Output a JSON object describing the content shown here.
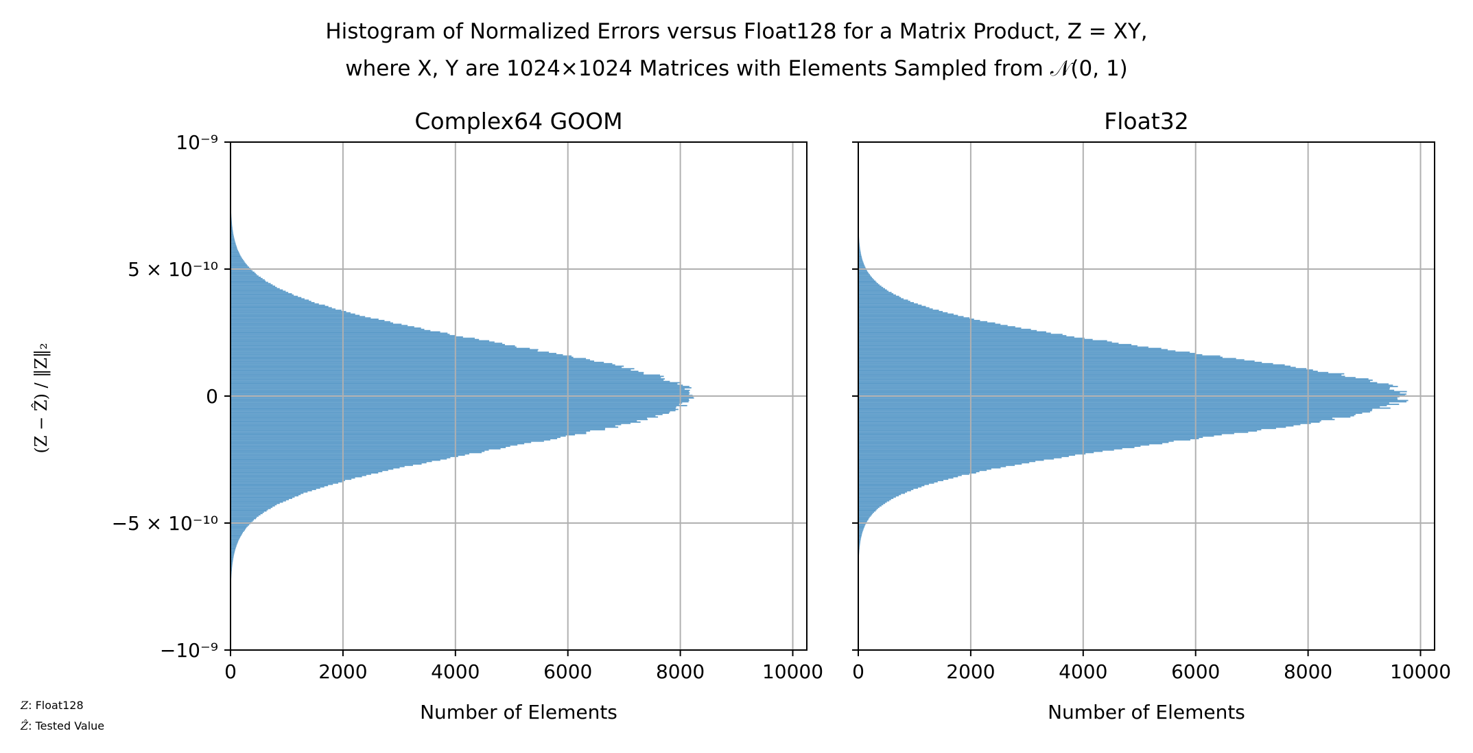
{
  "figure": {
    "title_line1": "Histogram of Normalized Errors versus Float128 for a Matrix Product, Z = XY,",
    "title_line2": "where X, Y are 1024×1024 Matrices with Elements Sampled from 𝒩(0, 1)",
    "ylabel": "(Z − Ẑ) / ‖Z‖₂",
    "note_z_symbol": "Z",
    "note_z": ":  Float128",
    "note_zhat_symbol": "Ẑ",
    "note_zhat": ":  Tested Value"
  },
  "colors": {
    "bar": "#5f9dca",
    "grid": "#b0b0b0",
    "axis": "#000000"
  },
  "chart_data": [
    {
      "type": "bar",
      "orientation": "horizontal",
      "title": "Complex64 GOOM",
      "xlabel": "Number of Elements",
      "ylabel": "(Z − Ẑ) / ‖Z‖₂",
      "xlim": [
        0,
        10250
      ],
      "ylim": [
        -1e-09,
        1e-09
      ],
      "xticks": [
        0,
        2000,
        4000,
        6000,
        8000,
        10000
      ],
      "xtick_labels": [
        "0",
        "2000",
        "4000",
        "6000",
        "8000",
        "10000"
      ],
      "yticks": [
        1e-09,
        5e-10,
        0,
        -5e-10,
        -1e-09
      ],
      "ytick_labels": [
        "10⁻⁹",
        "5 × 10⁻¹⁰",
        "0",
        "−5 × 10⁻¹⁰",
        "−10⁻⁹"
      ],
      "grid": true,
      "distribution": "approximately normal, centered at 0",
      "peak_count": 8200,
      "stddev": 2e-10,
      "series": [
        {
          "name": "Complex64 GOOM",
          "values": [
            8200
          ]
        }
      ]
    },
    {
      "type": "bar",
      "orientation": "horizontal",
      "title": "Float32",
      "xlabel": "Number of Elements",
      "xlim": [
        0,
        10250
      ],
      "ylim": [
        -1e-09,
        1e-09
      ],
      "xticks": [
        0,
        2000,
        4000,
        6000,
        8000,
        10000
      ],
      "xtick_labels": [
        "0",
        "2000",
        "4000",
        "6000",
        "8000",
        "10000"
      ],
      "yticks": [
        1e-09,
        5e-10,
        0,
        -5e-10,
        -1e-09
      ],
      "ytick_labels": [
        "",
        "",
        "",
        "",
        ""
      ],
      "grid": true,
      "distribution": "approximately normal, centered at 0",
      "peak_count": 9700,
      "stddev": 1.72e-10,
      "series": [
        {
          "name": "Float32",
          "values": [
            9700
          ]
        }
      ]
    }
  ]
}
